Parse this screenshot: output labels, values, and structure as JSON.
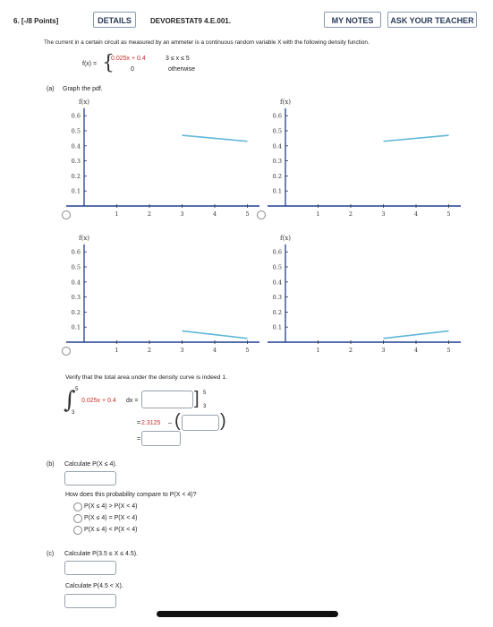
{
  "header": {
    "points": "6. [-/8 Points]",
    "details": "DETAILS",
    "problem_id": "DEVORESTAT9 4.E.001.",
    "my_notes": "MY NOTES",
    "ask_teacher": "ASK YOUR TEACHER"
  },
  "question": {
    "intro": "The current in a certain circuit as measured by an ammeter is a continuous random variable X with the following density function.",
    "fx_label": "f(x) =",
    "expr1_red": "0.025x + 0.4",
    "cond1": "3 ≤ x ≤ 5",
    "expr2": "0",
    "cond2": "otherwise"
  },
  "part_a": {
    "label": "(a)",
    "prompt": "Graph the pdf.",
    "graph_ylabel": "f(x)",
    "graph_xlabel": "x",
    "y_ticks": [
      "0.6",
      "0.5",
      "0.4",
      "0.3",
      "0.2",
      "0.1"
    ],
    "x_ticks": [
      "1",
      "2",
      "3",
      "4",
      "5"
    ],
    "verify_text": "Verify that the total area under the density curve is indeed 1.",
    "integral_lower": "3",
    "integral_upper": "5",
    "integrand_red": "0.025x + 0.4",
    "integrand_dx": "dx =",
    "eval_upper": "5",
    "eval_lower": "3",
    "eq_line2_red": "2.3125",
    "eq_prefix": "=",
    "eq_minus": "–",
    "eq_line3": "="
  },
  "part_b": {
    "label": "(b)",
    "calc": "Calculate P(X ≤ 4).",
    "compare_q": "How does this probability compare to P(X < 4)?",
    "options": [
      "P(X ≤ 4) > P(X < 4)",
      "P(X ≤ 4) = P(X < 4)",
      "P(X ≤ 4) < P(X < 4)"
    ]
  },
  "part_c": {
    "label": "(c)",
    "calc1": "Calculate P(3.5 ≤ X ≤ 4.5).",
    "calc2": "Calculate P(4.5 < X)."
  },
  "colors": {
    "curve": "#5fb7d9",
    "axis": "#1e3f8f",
    "accent_red": "#cc2b2b"
  },
  "graphs": [
    {
      "name": "graph-option-1",
      "line_from": [
        3,
        0.47
      ],
      "line_to": [
        5,
        0.43
      ]
    },
    {
      "name": "graph-option-2",
      "line_from": [
        3,
        0.43
      ],
      "line_to": [
        5,
        0.47
      ]
    },
    {
      "name": "graph-option-3",
      "line_from": [
        3,
        0.075
      ],
      "line_to": [
        5,
        0.025
      ]
    },
    {
      "name": "graph-option-4",
      "line_from": [
        3,
        0.025
      ],
      "line_to": [
        5,
        0.075
      ]
    }
  ]
}
